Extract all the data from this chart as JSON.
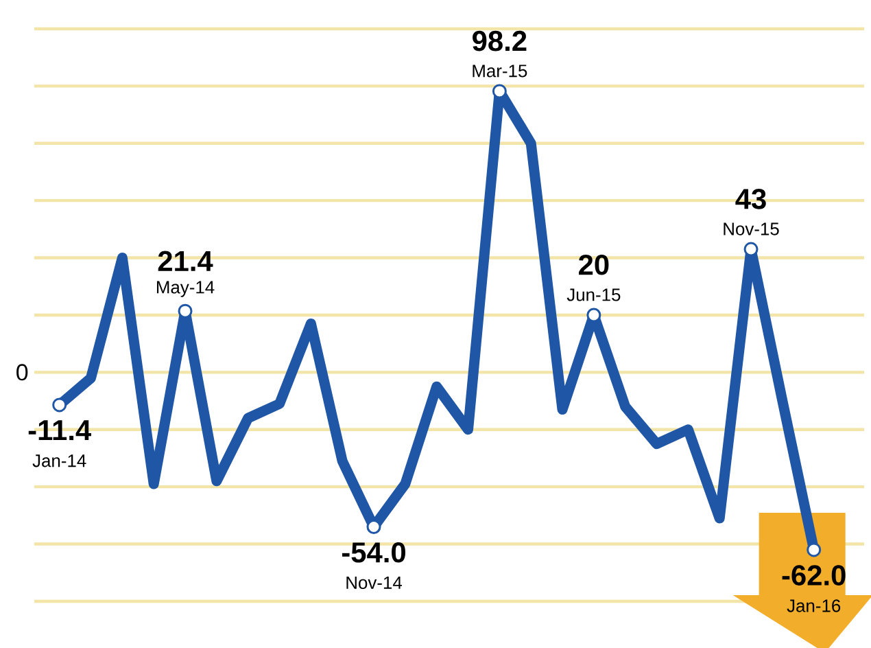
{
  "chart_data": {
    "type": "line",
    "categories": [
      null,
      null,
      null,
      null,
      null,
      null,
      null,
      null,
      null,
      null,
      null,
      null,
      null,
      null,
      null,
      null,
      null,
      null,
      null,
      null,
      null,
      null,
      null,
      null,
      null
    ],
    "values": [
      -11.4,
      -2,
      40,
      -39,
      21.4,
      -38,
      -16,
      -11,
      17,
      -31,
      -54.0,
      -39,
      -5,
      -20,
      98.2,
      80,
      -13,
      20,
      -12,
      -25,
      -20,
      -51,
      43,
      -10,
      -62.0
    ],
    "value_labels": [
      "-11.4",
      null,
      null,
      null,
      "21.4",
      null,
      null,
      null,
      null,
      null,
      "-54.0",
      null,
      null,
      null,
      "98.2",
      null,
      null,
      "20",
      null,
      null,
      null,
      null,
      "43",
      null,
      "-62.0"
    ],
    "color": "#1f56a6",
    "ylim": [
      -80,
      120
    ],
    "yticks": [
      {
        "value": -80,
        "label": null
      },
      {
        "value": -60,
        "label": null
      },
      {
        "value": -40,
        "label": null
      },
      {
        "value": -20,
        "label": null
      },
      {
        "value": 0,
        "label": null
      },
      {
        "value": 20,
        "label": null
      },
      {
        "value": 40,
        "label": null
      },
      {
        "value": 60,
        "label": null
      },
      {
        "value": 80,
        "label": null
      },
      {
        "value": 100,
        "label": null
      },
      {
        "value": 120,
        "label": null
      }
    ],
    "annotations": [
      "0",
      {
        "text": "Jan-14",
        "y": -11.4
      },
      {
        "text": "May-14",
        "y": 21.4
      },
      {
        "text": "Nov-14",
        "y": -54.0
      },
      {
        "text": "Mar-15",
        "y": 98.2
      },
      {
        "text": "Jun-15",
        "y": 20
      },
      {
        "text": "Nov-15",
        "y": 43
      },
      {
        "text": "Jan-16",
        "y": -62.0
      }
    ],
    "grid": "y"
  }
}
